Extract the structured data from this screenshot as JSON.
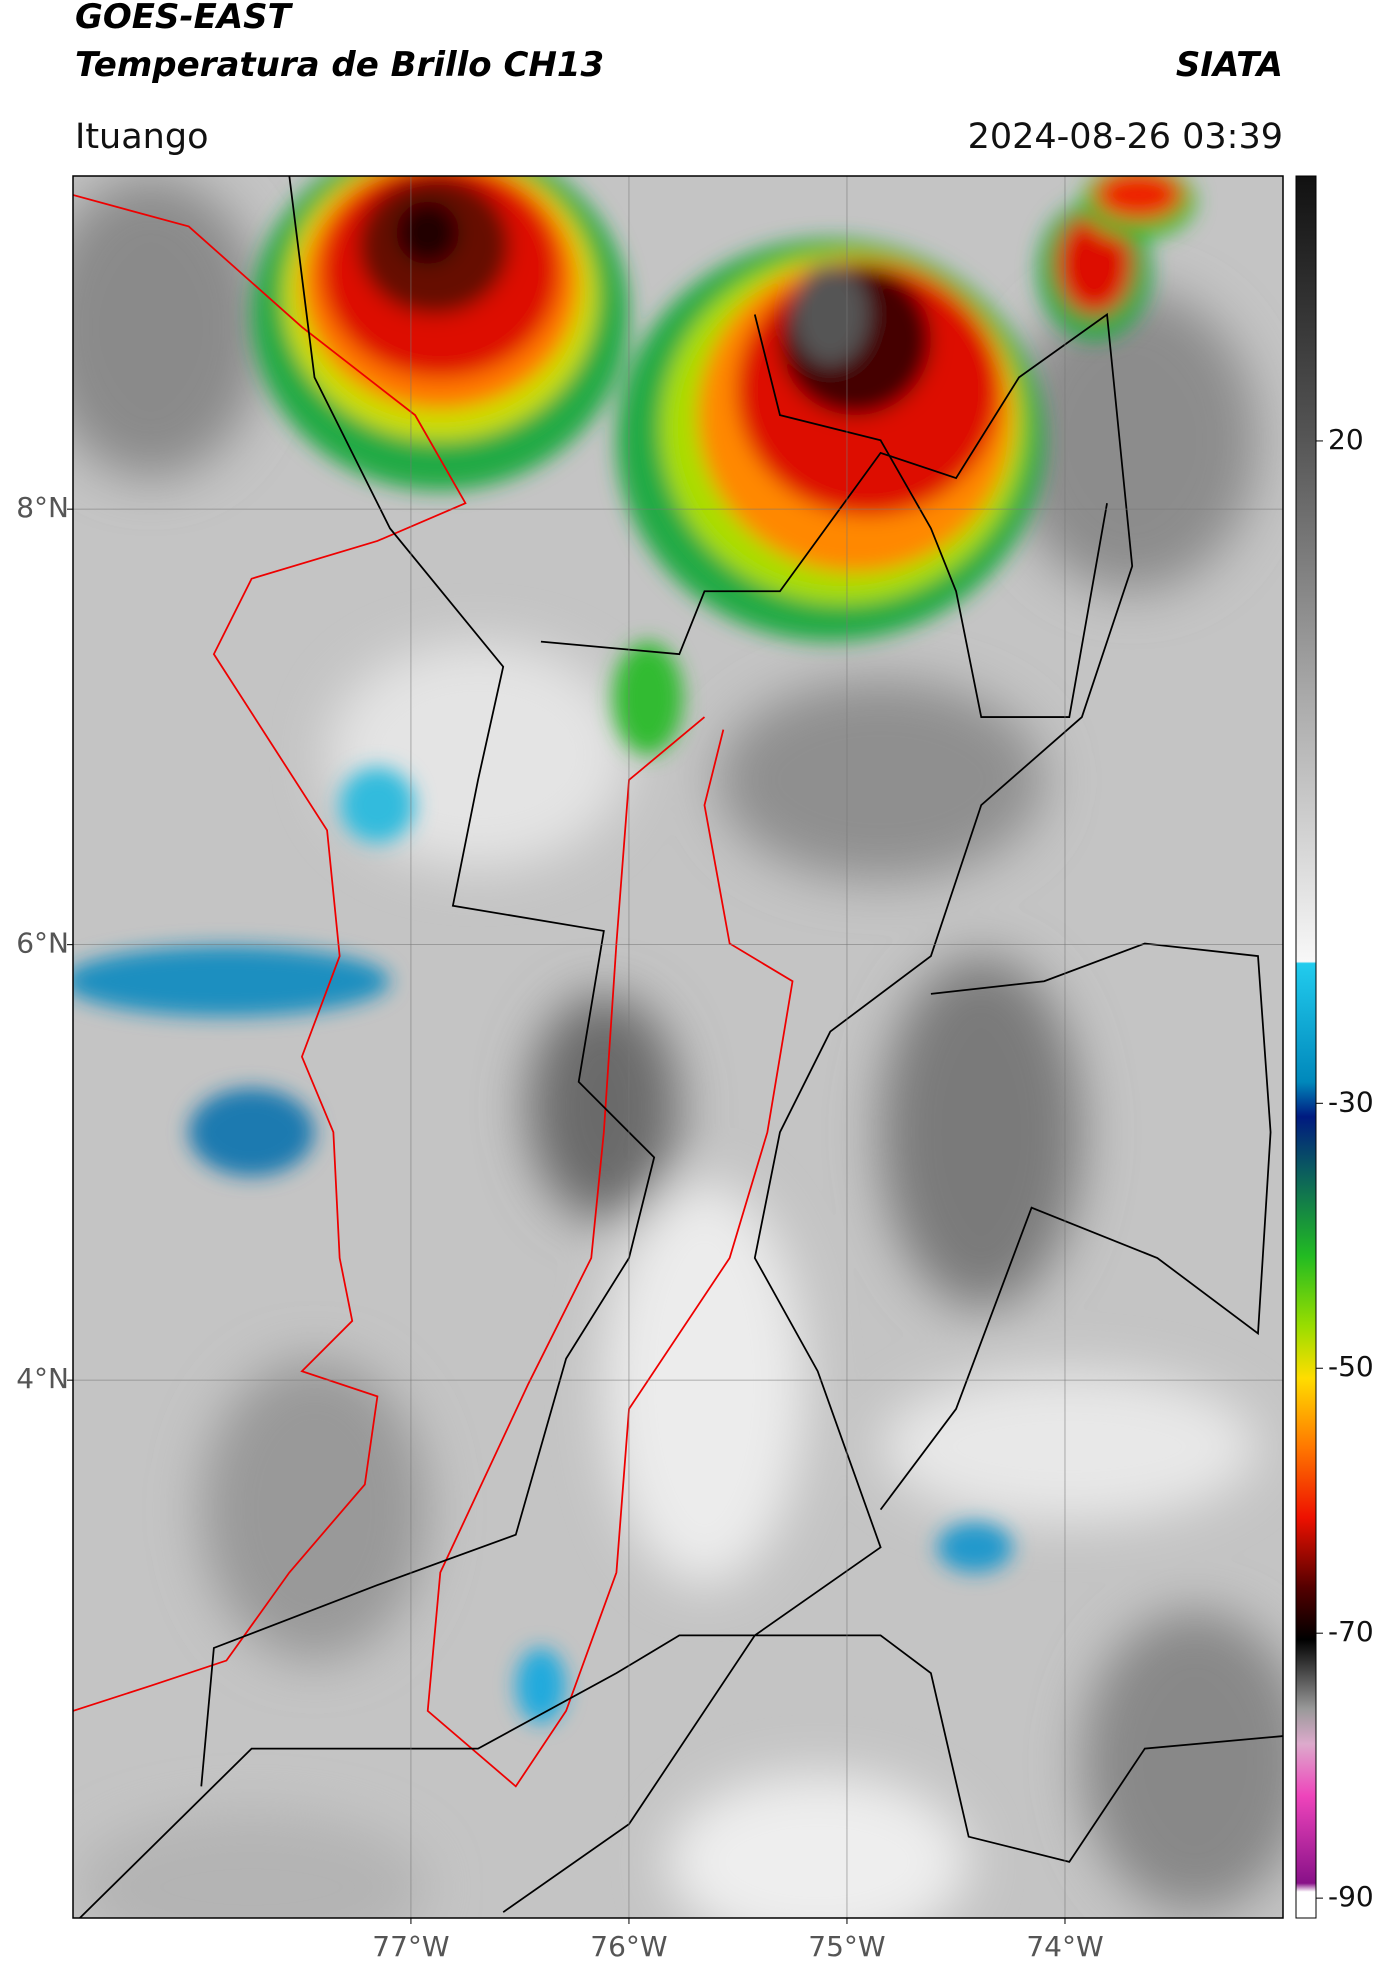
{
  "map": {
    "title": "GOES-EAST",
    "subtitle": "Temperatura de Brillo CH13",
    "source": "SIATA",
    "location": "Ituango",
    "datetime": "2024-08-26 03:39",
    "xlim": [
      -78.55,
      -73.0
    ],
    "ylim": [
      1.53,
      9.53
    ],
    "xticks": [
      {
        "value": -77,
        "label": "77°W"
      },
      {
        "value": -76,
        "label": "76°W"
      },
      {
        "value": -75,
        "label": "75°W"
      },
      {
        "value": -74,
        "label": "74°W"
      }
    ],
    "yticks": [
      {
        "value": 8,
        "label": "8°N"
      },
      {
        "value": 6,
        "label": "6°N"
      },
      {
        "value": 4,
        "label": "4°N"
      }
    ],
    "grid": true,
    "colorbar": {
      "lim": [
        -91.5,
        40
      ],
      "ticks": [
        20,
        -30,
        -50,
        -70,
        -90
      ]
    }
  }
}
